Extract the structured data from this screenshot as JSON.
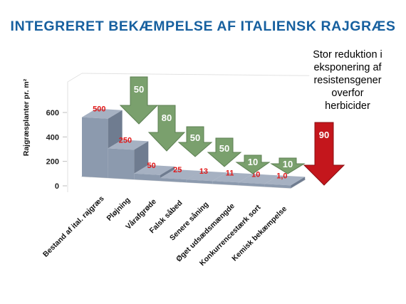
{
  "title": "INTEGRERET BEKÆMPELSE AF ITALIENSK RAJGRÆS",
  "note": [
    "Stor reduktion i",
    "eksponering af",
    "resistensgener",
    "overfor",
    "herbicider"
  ],
  "colors": {
    "title": "#17609f",
    "bar_front": "#8c9aae",
    "bar_top": "#a6b1c2",
    "bar_side": "#6f7c90",
    "green_arrow": "#7aa06d",
    "red_arrow": "#c4161c",
    "data_label": "#e01818"
  },
  "chart_data": {
    "type": "bar",
    "style": "3d-step",
    "ylabel": "Rajgræsplanter pr. m²",
    "ylim": [
      0,
      600
    ],
    "yticks": [
      0,
      200,
      400,
      600
    ],
    "grid": false,
    "categories": [
      "Bestand af ital. rajgræs",
      "Pløjning",
      "Vårafgrøde",
      "Falsk såbed",
      "Senere såning",
      "Øget udsædsmængde",
      "Konkurrencestærk sort",
      "Kemisk bekæmpelse"
    ],
    "values": [
      500,
      250,
      50,
      25,
      13,
      11,
      10,
      1.0
    ],
    "value_labels": [
      "500",
      "250",
      "50",
      "25",
      "13",
      "11",
      "10",
      "1,0"
    ],
    "reduction_arrows": [
      {
        "label": "50",
        "color": "green"
      },
      {
        "label": "80",
        "color": "green"
      },
      {
        "label": "50",
        "color": "green"
      },
      {
        "label": "50",
        "color": "green"
      },
      {
        "label": "10",
        "color": "green"
      },
      {
        "label": "10",
        "color": "green"
      },
      {
        "label": "90",
        "color": "red"
      }
    ]
  }
}
